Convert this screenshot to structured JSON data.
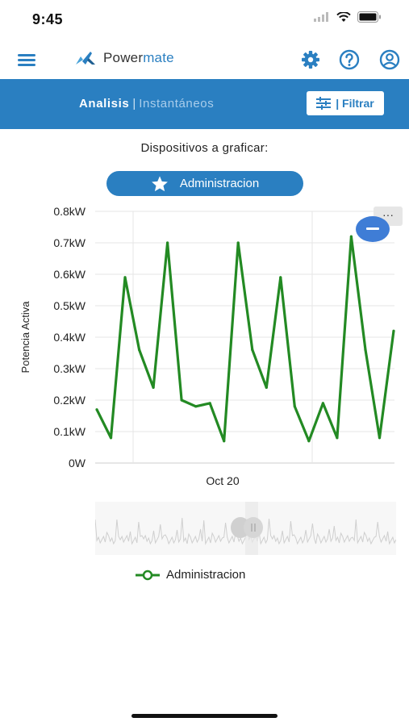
{
  "status_bar": {
    "time": "9:45"
  },
  "header": {
    "brand_part1": "Power",
    "brand_part2": "mate"
  },
  "tabs": {
    "active": "Analisis",
    "separator": "|",
    "inactive": "Instantáneos",
    "filter_label": "| Filtrar"
  },
  "devices": {
    "label": "Dispositivos a graficar:",
    "chip_label": "Administracion"
  },
  "colors": {
    "accent": "#2a7fc1",
    "series": "#238a23",
    "zoom_handle": "#3f7dd6"
  },
  "chart_data": {
    "type": "line",
    "ylabel": "Potencia Activa",
    "ylim": [
      0,
      0.8
    ],
    "yticks": [
      "0W",
      "0.1kW",
      "0.2kW",
      "0.3kW",
      "0.4kW",
      "0.5kW",
      "0.6kW",
      "0.7kW",
      "0.8kW"
    ],
    "xtick_labels": [
      "Oct 20"
    ],
    "grid": true,
    "legend": "bottom",
    "series": [
      {
        "name": "Administracion",
        "values": [
          0.17,
          0.08,
          0.59,
          0.36,
          0.24,
          0.7,
          0.2,
          0.18,
          0.19,
          0.07,
          0.7,
          0.36,
          0.24,
          0.59,
          0.18,
          0.07,
          0.19,
          0.08,
          0.72,
          0.36,
          0.08,
          0.42
        ]
      }
    ]
  }
}
